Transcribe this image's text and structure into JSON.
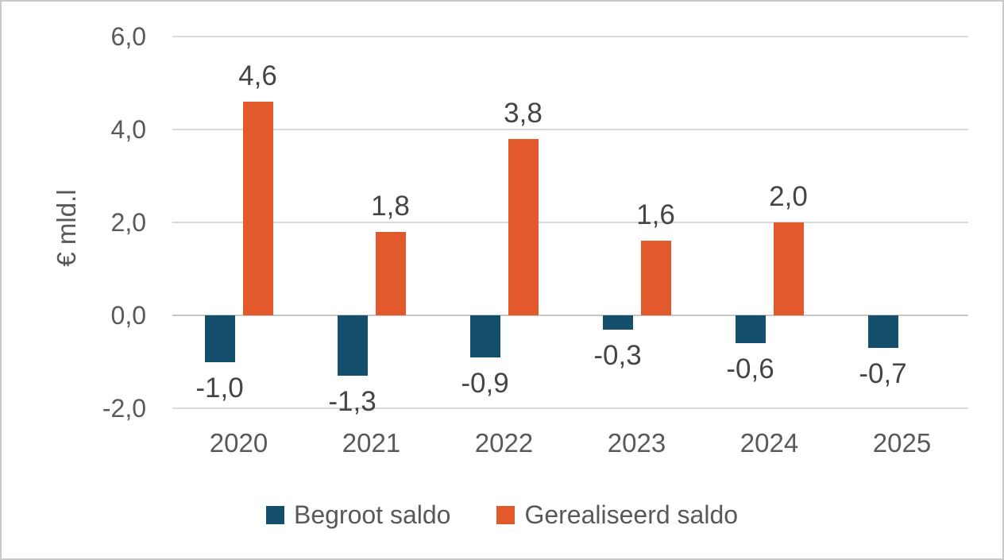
{
  "chart_data": {
    "type": "bar",
    "title": "",
    "xlabel": "",
    "ylabel": "€ mld.l",
    "categories": [
      "2020",
      "2021",
      "2022",
      "2023",
      "2024",
      "2025"
    ],
    "series": [
      {
        "name": "Begroot saldo",
        "color": "#14506E",
        "values": [
          -1.0,
          -1.3,
          -0.9,
          -0.3,
          -0.6,
          -0.7
        ],
        "labels": [
          "-1,0",
          "-1,3",
          "-0,9",
          "-0,3",
          "-0,6",
          "-0,7"
        ]
      },
      {
        "name": "Gerealiseerd saldo",
        "color": "#E2592B",
        "values": [
          4.6,
          1.8,
          3.8,
          1.6,
          2.0,
          null
        ],
        "labels": [
          "4,6",
          "1,8",
          "3,8",
          "1,6",
          "2,0",
          ""
        ]
      }
    ],
    "y_axis": {
      "min": -2.0,
      "max": 6.0,
      "step": 2.0,
      "tick_labels": [
        "6,0",
        "4,0",
        "2,0",
        "0,0",
        "-2,0"
      ],
      "tick_values": [
        6,
        4,
        2,
        0,
        -2
      ]
    },
    "grid": true,
    "legend_position": "bottom",
    "colors": {
      "gridline": "#d9d9d9",
      "axis_text": "#595959",
      "data_label_text": "#454545"
    }
  }
}
